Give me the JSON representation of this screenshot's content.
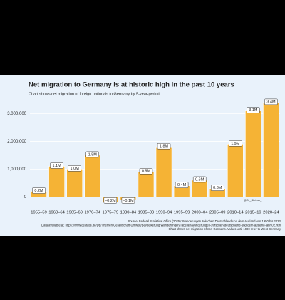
{
  "chart_data": {
    "type": "bar",
    "title": "Net migration to Germany is at historic high in the past 10 years",
    "subtitle": "Chart shows net migration of foreign nationals to Germany by 5-year-period",
    "categories": [
      "1955–59",
      "1960–64",
      "1965–69",
      "1970–74",
      "1975–79",
      "1980–84",
      "1985–89",
      "1990–94",
      "1995–99",
      "2000–04",
      "2005–09",
      "2010–14",
      "2015–19",
      "2020–24"
    ],
    "values": [
      200000,
      1100000,
      1000000,
      1500000,
      -200000,
      -100000,
      900000,
      1800000,
      400000,
      600000,
      300000,
      1900000,
      3100000,
      3400000
    ],
    "value_labels": [
      "0.2M",
      "1.1M",
      "1.0M",
      "1.5M",
      "−0.2M",
      "−0.1M",
      "0.9M",
      "1.8M",
      "0.4M",
      "0.6M",
      "0.3M",
      "1.9M",
      "3.1M",
      "3.4M"
    ],
    "color": "#f5b335",
    "ylim": [
      -300000,
      3500000
    ],
    "yticks": [
      0,
      {
        "value": 1000000,
        "label": "1,000,000"
      },
      {
        "value": 2000000,
        "label": "2,000,000"
      },
      {
        "value": 3000000,
        "label": "3,000,000"
      }
    ],
    "grid": true,
    "watermark": "@Dr_Steiber_",
    "source_lines": [
      "Source: Federal Statistical Office (2025): Wanderungen zwischen Deutschland und dem Ausland von 1950 bis 2023.",
      "Data available at: https://www.destatis.de/DE/Themen/Gesellschaft-Umwelt/Bevoelkerung/Wanderungen/Tabellen/wanderungen-zwischen-deutschland-und-dem-ausland-jahr-02.html",
      "Chart shows net migration of non-Germans. Values until 1990 refer to West Germany."
    ]
  }
}
